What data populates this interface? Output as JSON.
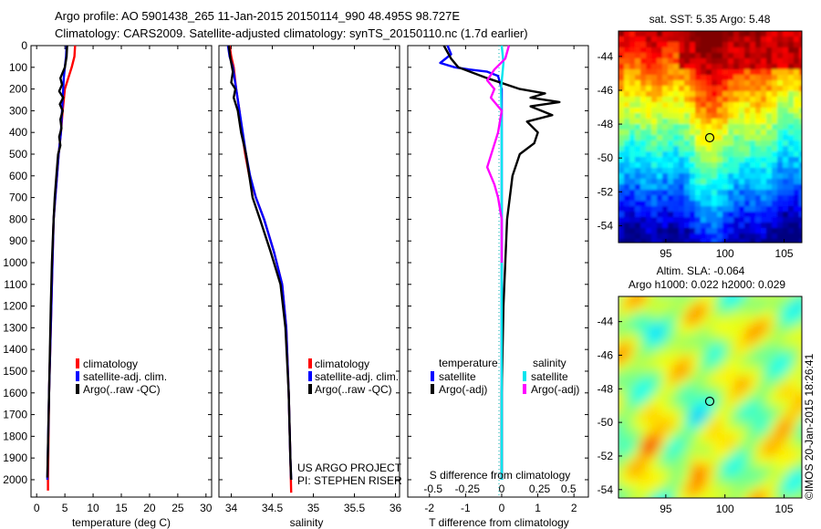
{
  "header": {
    "line1": "Argo profile: AO 5901438_265 11-Jan-2015 20150114_990 48.495S 98.727E",
    "line2": "Climatology: CARS2009. Satellite-adjusted climatology: synTS_20150110.nc (1.7d earlier)"
  },
  "footer": {
    "credit1": "US ARGO PROJECT",
    "credit2": "PI: STEPHEN RISER",
    "stamp": "©IMOS 20-Jan-2015 18:26:41"
  },
  "colors": {
    "climatology": "#ff0000",
    "satellite": "#0000ff",
    "argo": "#000000",
    "sat_salinity": "#00e5ee",
    "argo_salinity": "#ff00ff"
  },
  "chart_data": [
    {
      "type": "line",
      "id": "temperature",
      "xlabel": "temperature (deg C)",
      "xlim": [
        -1,
        31
      ],
      "xticks": [
        0,
        5,
        10,
        15,
        20,
        25,
        30
      ],
      "ylim": [
        2080,
        0
      ],
      "yticks": [
        0,
        100,
        200,
        300,
        400,
        500,
        600,
        700,
        800,
        900,
        1000,
        1100,
        1200,
        1300,
        1400,
        1500,
        1600,
        1700,
        1800,
        1900,
        2000
      ],
      "legend": [
        "climatology",
        "satellite-adj. clim.",
        "Argo(..raw -QC)"
      ],
      "series": [
        {
          "name": "climatology",
          "color": "#ff0000",
          "x": [
            6.8,
            6.7,
            6.2,
            5.6,
            5.0,
            4.6,
            4.3,
            3.9,
            3.6,
            3.3,
            3.0,
            2.8,
            2.6,
            2.2,
            2.0,
            2.0
          ],
          "y": [
            0,
            50,
            100,
            150,
            200,
            300,
            400,
            500,
            600,
            700,
            800,
            1000,
            1200,
            1600,
            2000,
            2050
          ]
        },
        {
          "name": "satellite-adj. clim.",
          "color": "#0000ff",
          "x": [
            5.3,
            5.2,
            5.0,
            4.8,
            4.7,
            4.5,
            4.3,
            3.9,
            3.6,
            3.3,
            3.0,
            2.8,
            2.6,
            2.2,
            1.9
          ],
          "y": [
            0,
            50,
            100,
            150,
            200,
            300,
            400,
            500,
            600,
            700,
            800,
            1000,
            1200,
            1600,
            2000
          ]
        },
        {
          "name": "Argo(..raw -QC)",
          "color": "#000000",
          "x": [
            5.4,
            5.3,
            5.0,
            4.2,
            4.5,
            4.0,
            4.7,
            4.1,
            4.6,
            4.2,
            4.4,
            4.0,
            4.2,
            3.8,
            3.5,
            3.2,
            3.0,
            2.7,
            2.5,
            2.2,
            1.9
          ],
          "y": [
            0,
            50,
            100,
            150,
            180,
            210,
            240,
            270,
            300,
            340,
            380,
            420,
            460,
            500,
            600,
            700,
            800,
            1000,
            1200,
            1600,
            1990
          ]
        }
      ]
    },
    {
      "type": "line",
      "id": "salinity",
      "xlabel": "salinity",
      "xlim": [
        33.85,
        36.05
      ],
      "xticks": [
        34,
        34.5,
        35,
        35.5,
        36
      ],
      "ylim": [
        2080,
        0
      ],
      "legend": [
        "climatology",
        "satellite-adj. clim.",
        "Argo(..raw -QC)"
      ],
      "series": [
        {
          "name": "climatology",
          "color": "#ff0000",
          "x": [
            33.98,
            34.0,
            34.03,
            34.06,
            34.1,
            34.13,
            34.17,
            34.22,
            34.3,
            34.4,
            34.52,
            34.62,
            34.67,
            34.7,
            34.72,
            34.73
          ],
          "y": [
            0,
            50,
            100,
            200,
            300,
            400,
            500,
            600,
            700,
            800,
            950,
            1100,
            1300,
            1600,
            1900,
            2060
          ]
        },
        {
          "name": "satellite-adj. clim.",
          "color": "#0000ff",
          "x": [
            33.96,
            33.98,
            34.02,
            34.06,
            34.1,
            34.14,
            34.18,
            34.23,
            34.3,
            34.4,
            34.52,
            34.62,
            34.67,
            34.7,
            34.72,
            34.73
          ],
          "y": [
            0,
            50,
            100,
            200,
            300,
            400,
            500,
            600,
            700,
            800,
            950,
            1100,
            1300,
            1600,
            1900,
            2000
          ]
        },
        {
          "name": "Argo(..raw -QC)",
          "color": "#000000",
          "x": [
            33.97,
            33.99,
            34.02,
            34.0,
            34.05,
            34.03,
            34.08,
            34.12,
            34.18,
            34.22,
            34.26,
            34.35,
            34.48,
            34.6,
            34.66,
            34.7,
            34.72,
            34.73
          ],
          "y": [
            0,
            60,
            120,
            170,
            200,
            240,
            300,
            400,
            500,
            600,
            700,
            800,
            950,
            1100,
            1300,
            1600,
            1900,
            2000
          ]
        }
      ]
    },
    {
      "type": "line",
      "id": "difference",
      "xlabel": "T difference from climatology",
      "xlabel2": "S difference from climatology",
      "xlim": [
        -2.6,
        2.4
      ],
      "xticks": [
        -2,
        -1,
        0,
        1,
        2
      ],
      "xticks2_labels": [
        "-0.5",
        "-0.25",
        "0",
        "0.25",
        "0.5"
      ],
      "xticks2_positions": [
        -1.9,
        -0.95,
        0,
        1.05,
        1.85
      ],
      "ylim": [
        2080,
        0
      ],
      "legend_titles": [
        "temperature",
        "salinity"
      ],
      "legend": [
        "satellite",
        "Argo(-adj)",
        "satellite",
        "Argo(-adj)"
      ],
      "series": [
        {
          "name": "satellite",
          "group": "temperature",
          "color": "#0000ff",
          "x": [
            -1.5,
            -1.4,
            -1.7,
            -1.3,
            -0.9,
            -0.4,
            -0.1,
            0.0,
            0.0,
            0.0
          ],
          "y": [
            0,
            40,
            80,
            100,
            110,
            120,
            140,
            200,
            600,
            2000
          ]
        },
        {
          "name": "Argo(-adj)",
          "group": "temperature",
          "color": "#000000",
          "x": [
            -1.6,
            -1.4,
            -1.2,
            -0.4,
            0.5,
            1.2,
            0.8,
            1.6,
            0.8,
            1.4,
            0.7,
            1.0,
            0.9,
            0.5,
            0.3,
            0.15,
            0.1,
            0.05,
            0.0,
            0.0
          ],
          "y": [
            0,
            60,
            100,
            150,
            200,
            220,
            240,
            260,
            280,
            320,
            350,
            400,
            450,
            500,
            600,
            800,
            1000,
            1200,
            1600,
            2000
          ]
        },
        {
          "name": "satellite",
          "group": "salinity",
          "color": "#00e5ee",
          "x": [
            0.0,
            0.05,
            -0.02,
            0.0,
            0.0,
            0.0
          ],
          "y": [
            0,
            80,
            200,
            400,
            1000,
            2000
          ]
        },
        {
          "name": "Argo(-adj)",
          "group": "salinity",
          "color": "#ff00ff",
          "x": [
            0.2,
            0.1,
            -0.2,
            -0.4,
            -0.2,
            -0.3,
            0.0,
            -0.1,
            -0.4,
            -0.2,
            -0.1,
            0.0,
            0.0
          ],
          "y": [
            0,
            60,
            110,
            160,
            200,
            240,
            300,
            400,
            560,
            640,
            700,
            800,
            1000
          ]
        }
      ]
    },
    {
      "type": "heatmap",
      "id": "sst-map",
      "title": "sat. SST: 5.35 Argo: 5.48",
      "xlim": [
        91,
        106.5
      ],
      "ylim": [
        -55,
        -42.5
      ],
      "xticks": [
        95,
        100,
        105
      ],
      "yticks": [
        -44,
        -46,
        -48,
        -50,
        -52,
        -54
      ],
      "marker": {
        "lon": 98.727,
        "lat": -48.495
      },
      "colormap": "jet"
    },
    {
      "type": "heatmap",
      "id": "sla-map",
      "title": "Altim. SLA: -0.064",
      "subtitle": "Argo h1000: 0.022 h2000: 0.029",
      "xlim": [
        91,
        106.5
      ],
      "ylim": [
        -54.5,
        -42.5
      ],
      "xticks": [
        95,
        100,
        105
      ],
      "yticks": [
        -44,
        -46,
        -48,
        -50,
        -52,
        -54
      ],
      "marker": {
        "lon": 98.727,
        "lat": -48.495
      },
      "colormap": "jet"
    }
  ]
}
